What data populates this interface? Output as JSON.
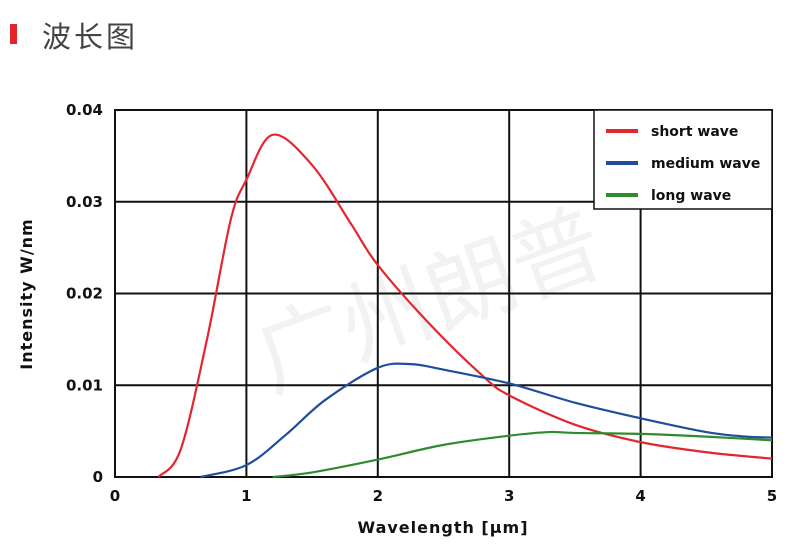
{
  "header": {
    "title": "波长图",
    "accent_color": "#e3262e"
  },
  "watermark": "广州朗普",
  "chart_data": {
    "type": "line",
    "title": "",
    "xlabel": "Wavelength [μm]",
    "ylabel": "Intensity W/nm",
    "xlim": [
      0,
      5
    ],
    "ylim": [
      0,
      0.04
    ],
    "xticks": [
      "0",
      "1",
      "2",
      "3",
      "4",
      "5"
    ],
    "yticks": [
      "0",
      "0.01",
      "0.02",
      "0.03",
      "0.04"
    ],
    "grid": true,
    "legend_position": "top-right",
    "series": [
      {
        "name": "short wave",
        "color": "#e3262e",
        "x": [
          0.33,
          0.5,
          0.7,
          0.88,
          1.0,
          1.2,
          1.5,
          1.8,
          2.0,
          2.4,
          2.8,
          3.0,
          3.5,
          4.0,
          4.5,
          5.0
        ],
        "y": [
          0,
          0.003,
          0.015,
          0.028,
          0.0324,
          0.0373,
          0.034,
          0.0275,
          0.0231,
          0.0166,
          0.011,
          0.0089,
          0.0057,
          0.0038,
          0.0027,
          0.002
        ]
      },
      {
        "name": "medium wave",
        "color": "#1f4e9c",
        "x": [
          0.65,
          1.0,
          1.3,
          1.6,
          2.0,
          2.25,
          2.5,
          3.0,
          3.5,
          4.0,
          4.5,
          4.8,
          5.0
        ],
        "y": [
          0,
          0.0013,
          0.0046,
          0.0084,
          0.0119,
          0.0123,
          0.0117,
          0.0102,
          0.0081,
          0.0064,
          0.0049,
          0.0044,
          0.0043
        ]
      },
      {
        "name": "long wave",
        "color": "#2e8b2e",
        "x": [
          1.2,
          1.5,
          2.0,
          2.5,
          3.0,
          3.3,
          3.5,
          4.0,
          4.5,
          5.0
        ],
        "y": [
          0,
          0.0005,
          0.0019,
          0.0035,
          0.0045,
          0.0049,
          0.0048,
          0.0047,
          0.0044,
          0.004
        ]
      }
    ]
  }
}
